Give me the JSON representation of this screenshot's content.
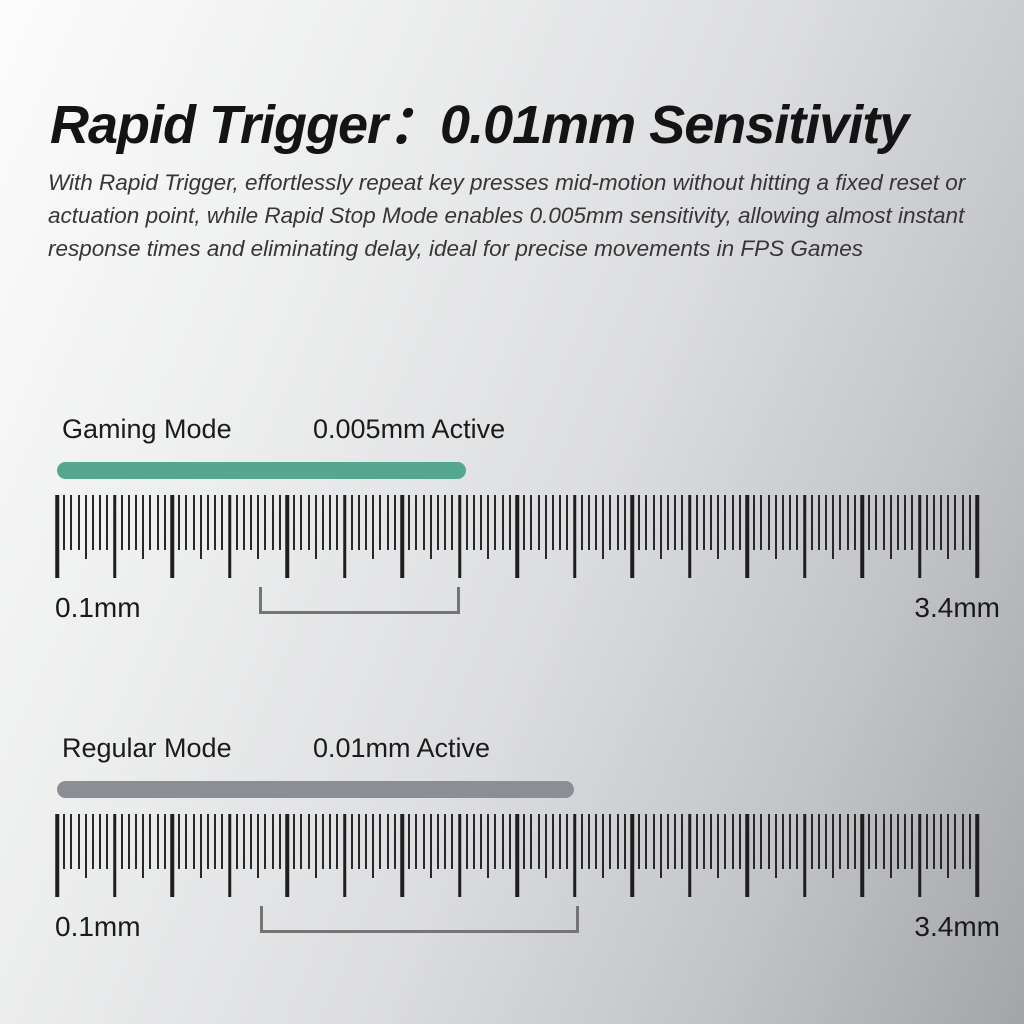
{
  "page": {
    "background_light": "#fcfcfd",
    "background_dark": "#a3a5a8"
  },
  "title": "Rapid Trigger：0.01mm Sensitivity",
  "description": "With Rapid Trigger, effortlessly repeat key presses mid-motion without hitting a fixed reset or actuation point, while Rapid Stop Mode enables 0.005mm sensitivity, allowing almost instant response times and eliminating delay, ideal for precise movements in FPS Games",
  "rulers": [
    {
      "type": "ruler",
      "mode_label": "Gaming Mode",
      "active_label": "0.005mm Active",
      "bar_color": "#55a78e",
      "bar_end_pct": 44.5,
      "scale_start_label": "0.1mm",
      "scale_end_label": "3.4mm",
      "scale_start_value_mm": 0.1,
      "scale_end_value_mm": 3.4,
      "major_intervals": 16,
      "subdivisions_per_major": 8,
      "bracket_start_pct": 21.96,
      "bracket_end_pct": 43.15
    },
    {
      "type": "ruler",
      "mode_label": "Regular Mode",
      "active_label": "0.01mm Active",
      "bar_color": "#8b8e93",
      "bar_end_pct": 56.2,
      "scale_start_label": "0.1mm",
      "scale_end_label": "3.4mm",
      "scale_start_value_mm": 0.1,
      "scale_end_value_mm": 3.4,
      "major_intervals": 16,
      "subdivisions_per_major": 8,
      "bracket_start_pct": 22.07,
      "bracket_end_pct": 56.09
    }
  ]
}
